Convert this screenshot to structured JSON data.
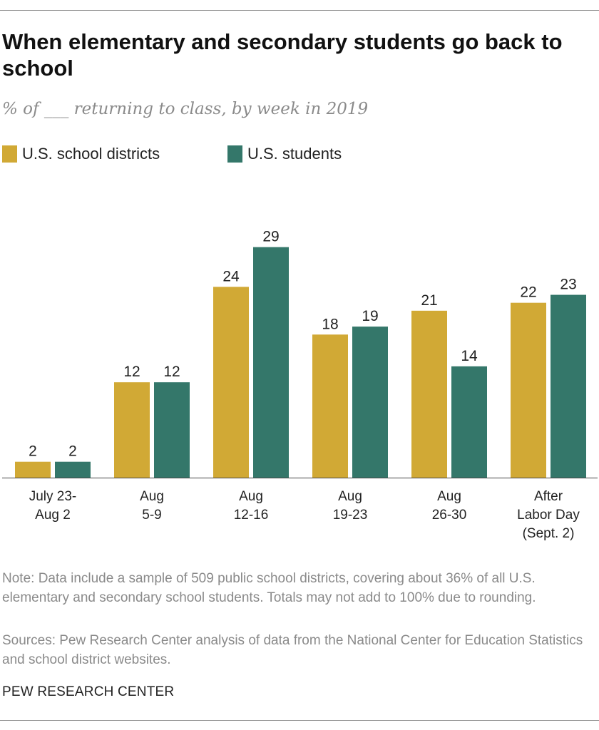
{
  "chart_data": {
    "type": "bar",
    "title": "When elementary and secondary students go back to school",
    "subtitle": "% of ___ returning to class, by week in 2019",
    "categories": [
      [
        "July 23-",
        "Aug 2"
      ],
      [
        "Aug",
        "5-9"
      ],
      [
        "Aug",
        "12-16"
      ],
      [
        "Aug",
        "19-23"
      ],
      [
        "Aug",
        "26-30"
      ],
      [
        "After",
        "Labor Day",
        "(Sept. 2)"
      ]
    ],
    "series": [
      {
        "name": "U.S. school districts",
        "color": "#D1A935",
        "values": [
          2,
          12,
          24,
          18,
          21,
          22
        ]
      },
      {
        "name": "U.S. students",
        "color": "#34776A",
        "values": [
          2,
          12,
          29,
          19,
          14,
          23
        ]
      }
    ],
    "ylim": [
      0,
      30
    ],
    "xlabel": "",
    "ylabel": "",
    "grid": false,
    "legend": "top-left"
  },
  "footer": {
    "note": "Note: Data include a sample of 509 public school districts, covering about 36% of all U.S. elementary and secondary school students. Totals may not add to 100% due to rounding.",
    "sources": "Sources: Pew Research Center analysis of data from the National Center for Education Statistics and school district websites.",
    "brand": "PEW RESEARCH CENTER"
  }
}
